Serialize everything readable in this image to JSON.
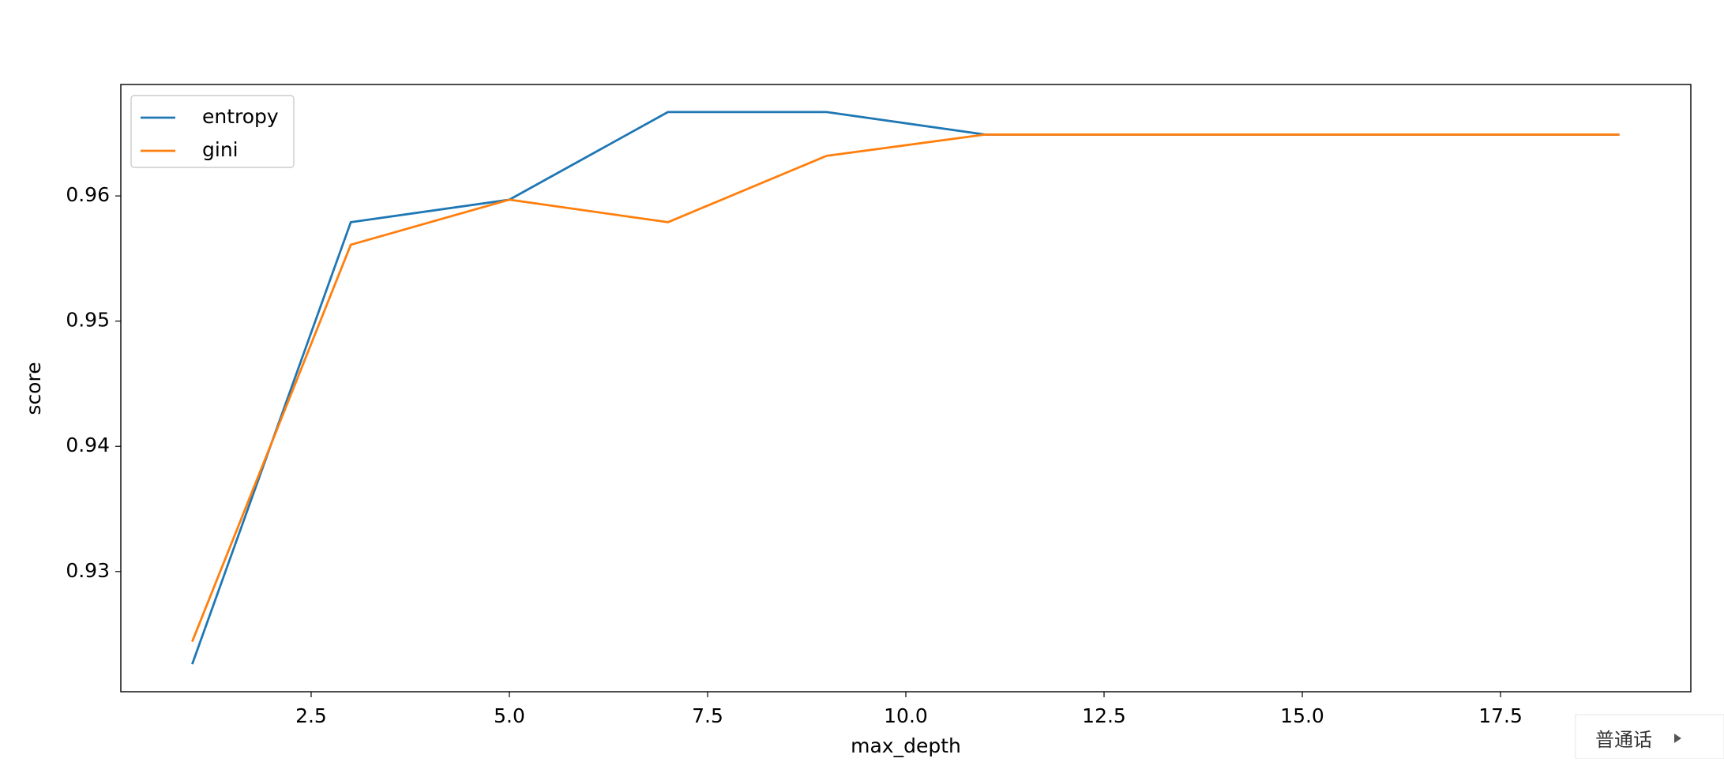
{
  "chart_data": {
    "type": "line",
    "x_label": "max_depth",
    "y_label": "score",
    "x": [
      1,
      3,
      5,
      7,
      9,
      11,
      13,
      15,
      17,
      19
    ],
    "series": [
      {
        "name": "entropy",
        "color": "#1f77b4",
        "values": [
          0.9226,
          0.9579,
          0.9597,
          0.9667,
          0.9667,
          0.9649,
          0.9649,
          0.9649,
          0.9649,
          0.9649
        ]
      },
      {
        "name": "gini",
        "color": "#ff7f0e",
        "values": [
          0.9244,
          0.9561,
          0.9597,
          0.9579,
          0.9632,
          0.9649,
          0.9649,
          0.9649,
          0.9649,
          0.9649
        ]
      }
    ],
    "xlim": [
      0.1,
      19.9
    ],
    "ylim": [
      0.9204,
      0.9689
    ],
    "xticks": [
      2.5,
      {
        "value": 5,
        "label": "5.0"
      },
      7.5,
      {
        "value": 10,
        "label": "10.0"
      },
      12.5,
      {
        "value": 15,
        "label": "15.0"
      },
      17.5
    ],
    "yticks": [
      0.93,
      0.94,
      0.95,
      0.96
    ],
    "legend": "upper left",
    "grid": false
  },
  "widget_label": "普通话"
}
